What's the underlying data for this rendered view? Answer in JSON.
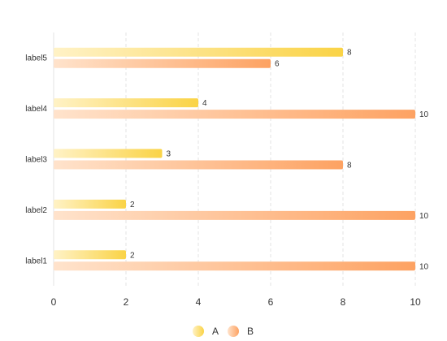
{
  "chart_data": {
    "type": "bar",
    "orientation": "horizontal",
    "categories": [
      "label1",
      "label2",
      "label3",
      "label4",
      "label5"
    ],
    "series": [
      {
        "name": "A",
        "values": [
          2,
          2,
          3,
          4,
          8
        ],
        "color_start": "#FFF2C6",
        "color_end": "#FAD346"
      },
      {
        "name": "B",
        "values": [
          10,
          10,
          8,
          10,
          6
        ],
        "color_start": "#FFE3CC",
        "color_end": "#FDA262"
      }
    ],
    "xlim": [
      0,
      10
    ],
    "x_ticks": [
      0,
      2,
      4,
      6,
      8,
      10
    ],
    "grid": "vertical-dashed",
    "legend_position": "bottom-center",
    "data_labels": true
  }
}
